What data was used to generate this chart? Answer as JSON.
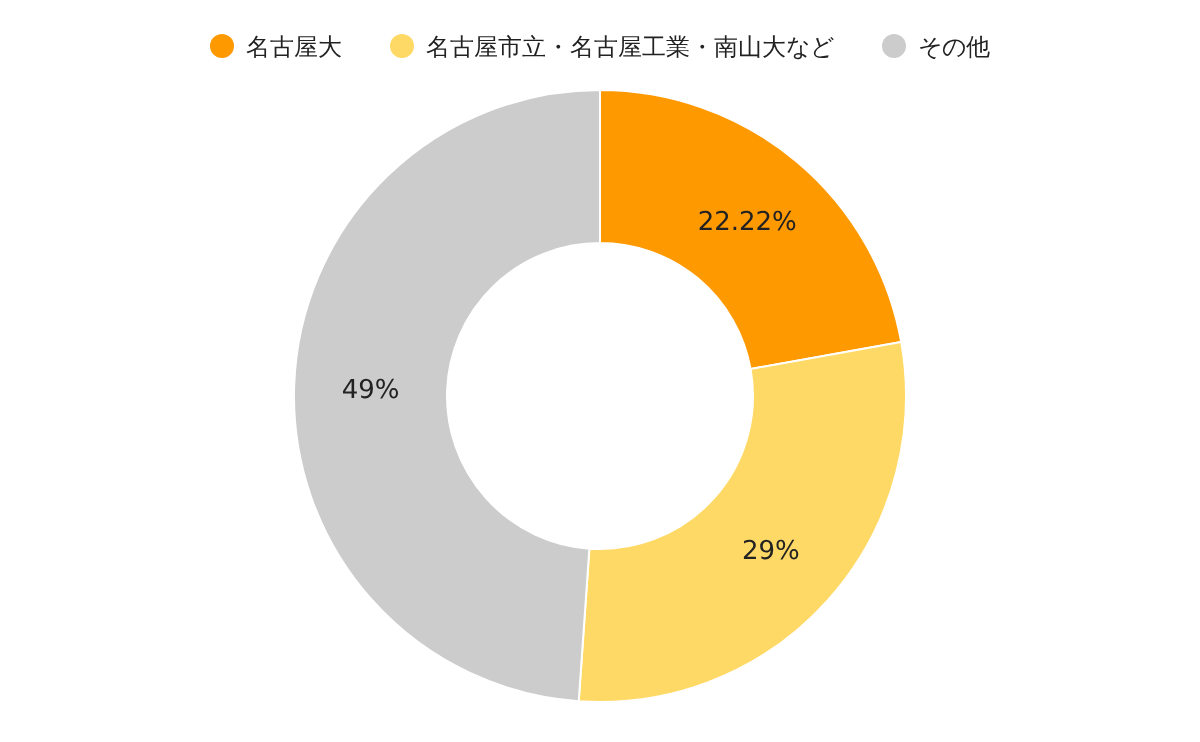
{
  "chart_data": {
    "type": "donut",
    "categories": [
      "名古屋大",
      "名古屋市立・名古屋工業・南山大など",
      "その他"
    ],
    "values": [
      22.22,
      29,
      49
    ],
    "colors": [
      "#ff9900",
      "#ffd966",
      "#cccccc"
    ],
    "value_labels": [
      "22.22%",
      "29%",
      "49%"
    ],
    "legend": "top"
  }
}
